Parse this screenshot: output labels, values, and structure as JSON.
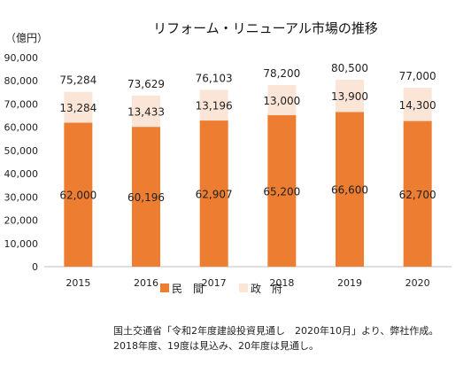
{
  "chart_data": {
    "type": "bar",
    "stacked": true,
    "title": "リフォーム・リニューアル市場の推移",
    "unit_label": "（億円）",
    "categories": [
      "2015",
      "2016",
      "2017",
      "2018",
      "2019",
      "2020"
    ],
    "series": [
      {
        "name": "民　間",
        "color": "#ED7D31",
        "values": [
          62000,
          60196,
          62907,
          65200,
          66600,
          62700
        ],
        "labels": [
          "62,000",
          "60,196",
          "62,907",
          "65,200",
          "66,600",
          "62,700"
        ]
      },
      {
        "name": "政　府",
        "color": "#FBE5D6",
        "values": [
          13284,
          13433,
          13196,
          13000,
          13900,
          14300
        ],
        "labels": [
          "13,284",
          "13,433",
          "13,196",
          "13,000",
          "13,900",
          "14,300"
        ]
      }
    ],
    "totals": [
      "75,284",
      "73,629",
      "76,103",
      "78,200",
      "80,500",
      "77,000"
    ],
    "ylim": [
      0,
      90000
    ],
    "yticks": [
      0,
      10000,
      20000,
      30000,
      40000,
      50000,
      60000,
      70000,
      80000,
      90000
    ],
    "ytick_labels": [
      "0",
      "10,000",
      "20,000",
      "30,000",
      "40,000",
      "50,000",
      "60,000",
      "70,000",
      "80,000",
      "90,000"
    ],
    "grid": false,
    "legend_position": "bottom"
  },
  "source_note": {
    "line1": "国土交通省「令和2年度建設投資見通し　2020年10月」より、弊社作成。",
    "line2": "2018年度、19度は見込み、20年度は見通し。"
  }
}
